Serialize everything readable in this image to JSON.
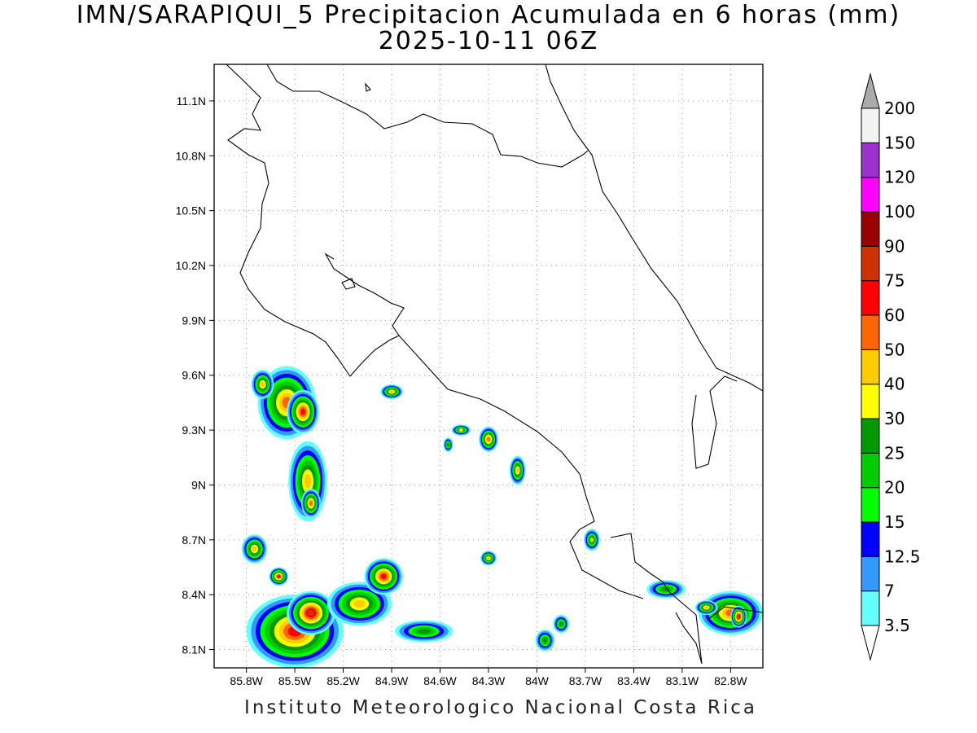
{
  "title_line1": "IMN/SARAPIQUI_5 Precipitacion Acumulada en 6 horas (mm)",
  "title_line2": "2025-10-11 06Z",
  "footer": "Instituto Meteorologico Nacional Costa Rica",
  "map": {
    "lon_range": [
      -86.0,
      -82.6
    ],
    "lat_range": [
      8.0,
      11.3
    ],
    "lon_ticks": [
      {
        "value": -85.8,
        "label": "85.8W"
      },
      {
        "value": -85.5,
        "label": "85.5W"
      },
      {
        "value": -85.2,
        "label": "85.2W"
      },
      {
        "value": -84.9,
        "label": "84.9W"
      },
      {
        "value": -84.6,
        "label": "84.6W"
      },
      {
        "value": -84.3,
        "label": "84.3W"
      },
      {
        "value": -84.0,
        "label": "84W"
      },
      {
        "value": -83.7,
        "label": "83.7W"
      },
      {
        "value": -83.4,
        "label": "83.4W"
      },
      {
        "value": -83.1,
        "label": "83.1W"
      },
      {
        "value": -82.8,
        "label": "82.8W"
      }
    ],
    "lat_ticks": [
      {
        "value": 8.1,
        "label": "8.1N"
      },
      {
        "value": 8.4,
        "label": "8.4N"
      },
      {
        "value": 8.7,
        "label": "8.7N"
      },
      {
        "value": 9.0,
        "label": "9N"
      },
      {
        "value": 9.3,
        "label": "9.3N"
      },
      {
        "value": 9.6,
        "label": "9.6N"
      },
      {
        "value": 9.9,
        "label": "9.9N"
      },
      {
        "value": 10.2,
        "label": "10.2N"
      },
      {
        "value": 10.5,
        "label": "10.5N"
      },
      {
        "value": 10.8,
        "label": "10.8N"
      },
      {
        "value": 11.1,
        "label": "11.1N"
      }
    ],
    "grid": true
  },
  "colorbar": {
    "levels": [
      "3.5",
      "7",
      "12.5",
      "15",
      "20",
      "25",
      "30",
      "40",
      "50",
      "60",
      "75",
      "90",
      "100",
      "120",
      "150",
      "200"
    ],
    "colors": [
      "#66ffff",
      "#3399ff",
      "#0000ff",
      "#00ff00",
      "#00cc00",
      "#009900",
      "#ffff00",
      "#ffcc00",
      "#ff6600",
      "#ff0000",
      "#cc3300",
      "#990000",
      "#ff00ff",
      "#9933cc",
      "#f2f2f2",
      "#aaaaaa"
    ]
  },
  "rain_cells": [
    {
      "lon": -85.55,
      "lat": 9.45,
      "rx": 0.18,
      "ry": 0.2,
      "level": 8
    },
    {
      "lon": -85.45,
      "lat": 9.4,
      "rx": 0.1,
      "ry": 0.12,
      "level": 9
    },
    {
      "lon": -85.7,
      "lat": 9.55,
      "rx": 0.07,
      "ry": 0.08,
      "level": 7
    },
    {
      "lon": -85.42,
      "lat": 9.02,
      "rx": 0.12,
      "ry": 0.22,
      "level": 7
    },
    {
      "lon": -85.4,
      "lat": 8.9,
      "rx": 0.06,
      "ry": 0.08,
      "level": 8
    },
    {
      "lon": -85.5,
      "lat": 8.2,
      "rx": 0.3,
      "ry": 0.2,
      "level": 9
    },
    {
      "lon": -85.4,
      "lat": 8.3,
      "rx": 0.15,
      "ry": 0.12,
      "level": 10
    },
    {
      "lon": -85.1,
      "lat": 8.35,
      "rx": 0.2,
      "ry": 0.12,
      "level": 7
    },
    {
      "lon": -84.95,
      "lat": 8.5,
      "rx": 0.12,
      "ry": 0.1,
      "level": 9
    },
    {
      "lon": -85.75,
      "lat": 8.65,
      "rx": 0.08,
      "ry": 0.08,
      "level": 7
    },
    {
      "lon": -85.6,
      "lat": 8.5,
      "rx": 0.06,
      "ry": 0.05,
      "level": 9
    },
    {
      "lon": -84.7,
      "lat": 8.2,
      "rx": 0.18,
      "ry": 0.06,
      "level": 5
    },
    {
      "lon": -84.3,
      "lat": 9.25,
      "rx": 0.06,
      "ry": 0.07,
      "level": 8
    },
    {
      "lon": -84.12,
      "lat": 9.08,
      "rx": 0.05,
      "ry": 0.08,
      "level": 7
    },
    {
      "lon": -84.47,
      "lat": 9.3,
      "rx": 0.06,
      "ry": 0.03,
      "level": 6
    },
    {
      "lon": -84.9,
      "lat": 9.51,
      "rx": 0.07,
      "ry": 0.04,
      "level": 7
    },
    {
      "lon": -84.55,
      "lat": 9.22,
      "rx": 0.03,
      "ry": 0.04,
      "level": 5
    },
    {
      "lon": -84.3,
      "lat": 8.6,
      "rx": 0.05,
      "ry": 0.04,
      "level": 7
    },
    {
      "lon": -83.95,
      "lat": 8.15,
      "rx": 0.06,
      "ry": 0.06,
      "level": 5
    },
    {
      "lon": -83.85,
      "lat": 8.24,
      "rx": 0.05,
      "ry": 0.05,
      "level": 5
    },
    {
      "lon": -83.66,
      "lat": 8.7,
      "rx": 0.05,
      "ry": 0.06,
      "level": 6
    },
    {
      "lon": -83.2,
      "lat": 8.43,
      "rx": 0.12,
      "ry": 0.05,
      "level": 5
    },
    {
      "lon": -82.8,
      "lat": 8.3,
      "rx": 0.2,
      "ry": 0.12,
      "level": 8
    },
    {
      "lon": -82.75,
      "lat": 8.28,
      "rx": 0.05,
      "ry": 0.06,
      "level": 10
    },
    {
      "lon": -82.95,
      "lat": 8.33,
      "rx": 0.07,
      "ry": 0.04,
      "level": 7
    }
  ]
}
